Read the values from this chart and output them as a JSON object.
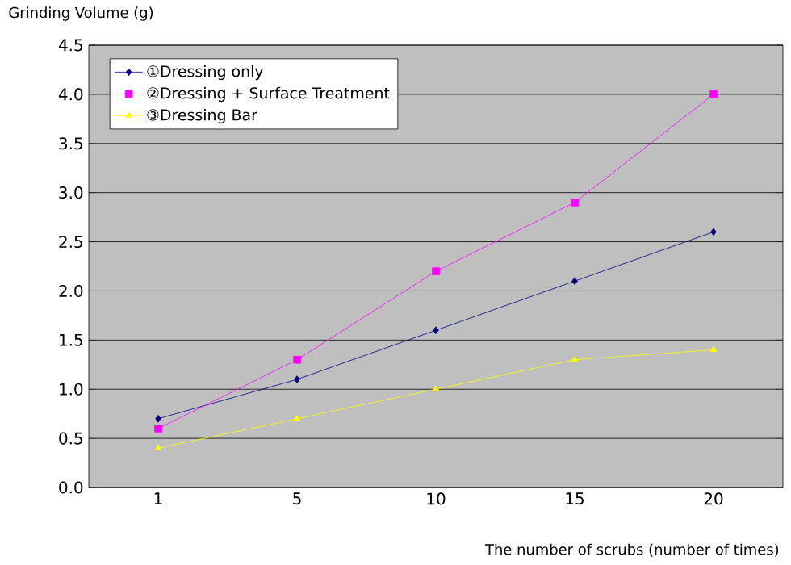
{
  "chart_data": {
    "type": "line",
    "xlabel": "The number of scrubs (number of times)",
    "ylabel": "Grinding Volume (g)",
    "categories": [
      "1",
      "5",
      "10",
      "15",
      "20"
    ],
    "series": [
      {
        "name": "①Dressing only",
        "color": "#000080",
        "marker": "diamond",
        "values": [
          0.7,
          1.1,
          1.6,
          2.1,
          2.6
        ]
      },
      {
        "name": "②Dressing + Surface Treatment",
        "color": "#ff00ff",
        "marker": "square",
        "values": [
          0.6,
          1.3,
          2.2,
          2.9,
          4.0
        ]
      },
      {
        "name": "③Dressing Bar",
        "color": "#ffff00",
        "marker": "triangle",
        "values": [
          0.4,
          0.7,
          1.0,
          1.3,
          1.4
        ]
      }
    ],
    "ylim": [
      0,
      4.5
    ],
    "yticks": [
      {
        "value": 0,
        "label": "0.0"
      },
      {
        "value": 0.5,
        "label": "0.5"
      },
      {
        "value": 1,
        "label": "1.0"
      },
      {
        "value": 1.5,
        "label": "1.5"
      },
      {
        "value": 2,
        "label": "2.0"
      },
      {
        "value": 2.5,
        "label": "2.5"
      },
      {
        "value": 3,
        "label": "3.0"
      },
      {
        "value": 3.5,
        "label": "3.5"
      },
      {
        "value": 4,
        "label": "4.0"
      },
      {
        "value": 4.5,
        "label": "4.5"
      }
    ],
    "grid": "y",
    "legend": "top left"
  }
}
